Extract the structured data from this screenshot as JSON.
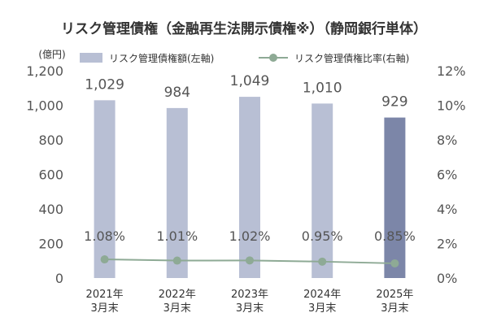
{
  "chart_data": {
    "type": "bar+line",
    "title": "リスク管理債権（金融再生法開示債権※）（静岡銀行単体）",
    "left_axis_unit": "(億円)",
    "categories": [
      [
        "2021年",
        "3月末"
      ],
      [
        "2022年",
        "3月末"
      ],
      [
        "2023年",
        "3月末"
      ],
      [
        "2024年",
        "3月末"
      ],
      [
        "2025年",
        "3月末"
      ]
    ],
    "series": [
      {
        "name": "リスク管理債権額(左軸)",
        "type": "bar",
        "axis": "left",
        "values": [
          1029,
          984,
          1049,
          1010,
          929
        ],
        "labels": [
          "1,029",
          "984",
          "1,049",
          "1,010",
          "929"
        ]
      },
      {
        "name": "リスク管理債権比率(右軸)",
        "type": "line",
        "axis": "right",
        "values": [
          1.08,
          1.01,
          1.02,
          0.95,
          0.85
        ],
        "labels": [
          "1.08%",
          "1.01%",
          "1.02%",
          "0.95%",
          "0.85%"
        ]
      }
    ],
    "left_axis": {
      "min": 0,
      "max": 1200,
      "ticks": [
        "0",
        "200",
        "400",
        "600",
        "800",
        "1,000",
        "1,200"
      ]
    },
    "right_axis": {
      "min": 0,
      "max": 12,
      "ticks": [
        "0%",
        "2%",
        "4%",
        "6%",
        "8%",
        "10%",
        "12%"
      ]
    },
    "grid": false,
    "legend_position": "top"
  },
  "colors": {
    "bar": "#b8bfd4",
    "bar_highlight": "#7c86a8",
    "line": "#8eaa95",
    "text": "#333333",
    "tick": "#555555"
  }
}
